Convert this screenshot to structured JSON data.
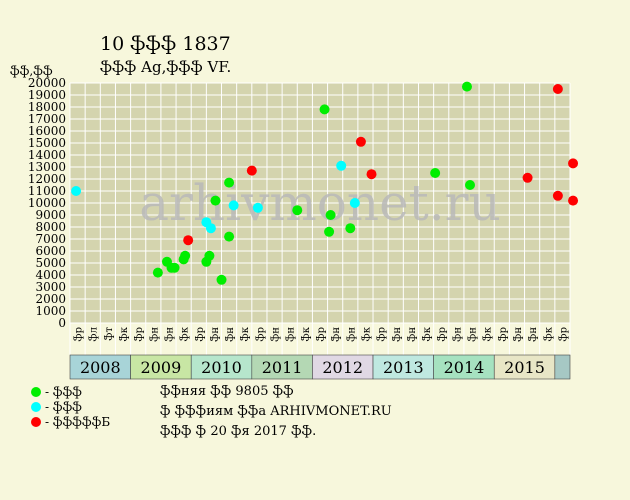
{
  "header": {
    "title": "10 ֆֆֆ 1837",
    "subtitle": "ֆֆֆ Ag,ֆֆֆ VF.",
    "y_unit": "ֆֆ,ֆֆ"
  },
  "watermark": "arhivmonet.ru",
  "legend": [
    {
      "label": "- ֆֆֆ",
      "color": "#00ee00"
    },
    {
      "label": "- ֆֆֆ",
      "color": "#00ffff"
    },
    {
      "label": "- ֆֆֆֆֆБ",
      "color": "#ff0000"
    }
  ],
  "info": [
    "ֆֆняя ֆֆ 9805 ֆֆ",
    "ֆ ֆֆֆиям ֆֆа ARHIVMONET.RU",
    "ֆֆֆ ֆ 20 ֆя 2017 ֆֆ."
  ],
  "chart_data": {
    "type": "scatter",
    "ylim": [
      0,
      20000
    ],
    "yticks": [
      0,
      1000,
      2000,
      3000,
      4000,
      5000,
      6000,
      7000,
      8000,
      9000,
      10000,
      11000,
      12000,
      13000,
      14000,
      15000,
      16000,
      17000,
      18000,
      19000,
      20000
    ],
    "quarters": [
      "ֆр",
      "ֆл",
      "ֆт",
      "ֆк",
      "ֆр",
      "ֆн",
      "ֆн",
      "ֆк",
      "ֆр",
      "ֆн",
      "ֆн",
      "ֆк",
      "ֆр",
      "ֆн",
      "ֆн",
      "ֆк",
      "ֆр",
      "ֆн",
      "ֆн",
      "ֆк",
      "ֆр",
      "ֆн",
      "ֆн",
      "ֆк",
      "ֆр",
      "ֆн",
      "ֆн",
      "ֆк",
      "ֆр",
      "ֆн",
      "ֆн",
      "ֆк",
      "ֆр"
    ],
    "years": [
      {
        "label": "2008",
        "start": 0,
        "span": 4,
        "color": "#a8d4d8"
      },
      {
        "label": "2009",
        "start": 4,
        "span": 4,
        "color": "#c8e6a4"
      },
      {
        "label": "2010",
        "start": 8,
        "span": 4,
        "color": "#b6e6cc"
      },
      {
        "label": "2011",
        "start": 12,
        "span": 4,
        "color": "#b4d8b4"
      },
      {
        "label": "2012",
        "start": 16,
        "span": 4,
        "color": "#e0d8e4"
      },
      {
        "label": "2013",
        "start": 20,
        "span": 4,
        "color": "#bfe8e0"
      },
      {
        "label": "2014",
        "start": 24,
        "span": 4,
        "color": "#a6e2c0"
      },
      {
        "label": "2015",
        "start": 28,
        "span": 4,
        "color": "#e8e6c6"
      },
      {
        "label": "",
        "start": 32,
        "span": 1,
        "color": "#a6c8c4"
      }
    ],
    "series": [
      {
        "color": "#00ee00",
        "points": [
          [
            5.3,
            4200
          ],
          [
            5.9,
            5100
          ],
          [
            6.2,
            4600
          ],
          [
            6.4,
            4600
          ],
          [
            7.0,
            5300
          ],
          [
            7.1,
            5600
          ],
          [
            8.5,
            5100
          ],
          [
            8.7,
            5600
          ],
          [
            9.1,
            10200
          ],
          [
            9.5,
            3600
          ],
          [
            10.0,
            11700
          ],
          [
            10.0,
            7200
          ],
          [
            14.5,
            9400
          ],
          [
            16.3,
            17800
          ],
          [
            16.6,
            7600
          ],
          [
            16.7,
            9000
          ],
          [
            18.0,
            7900
          ],
          [
            23.6,
            12500
          ],
          [
            25.7,
            19700
          ],
          [
            25.9,
            11500
          ]
        ]
      },
      {
        "color": "#00ffff",
        "points": [
          [
            -0.1,
            11000
          ],
          [
            8.5,
            8400
          ],
          [
            8.8,
            7900
          ],
          [
            10.3,
            9800
          ],
          [
            11.9,
            9600
          ],
          [
            17.4,
            13100
          ],
          [
            18.3,
            10000
          ]
        ]
      },
      {
        "color": "#ff0000",
        "points": [
          [
            7.3,
            6900
          ],
          [
            11.5,
            12700
          ],
          [
            18.7,
            15100
          ],
          [
            19.4,
            12400
          ],
          [
            29.7,
            12100
          ],
          [
            31.7,
            10600
          ],
          [
            31.7,
            19500
          ],
          [
            32.7,
            13300
          ],
          [
            32.7,
            10200
          ]
        ]
      }
    ]
  }
}
